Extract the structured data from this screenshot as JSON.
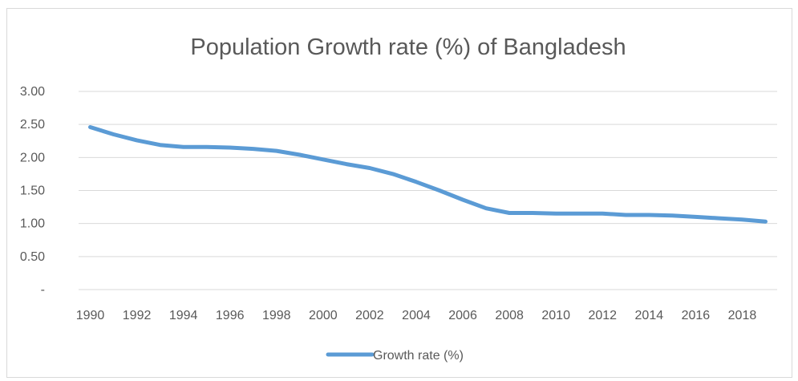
{
  "chart_data": {
    "type": "line",
    "title": "Population Growth rate (%) of Bangladesh",
    "xlabel": "",
    "ylabel": "",
    "ylim": [
      0,
      3
    ],
    "y_ticks": [
      {
        "value": 3.0,
        "label": "3.00"
      },
      {
        "value": 2.5,
        "label": "2.50"
      },
      {
        "value": 2.0,
        "label": "2.00"
      },
      {
        "value": 1.5,
        "label": "1.50"
      },
      {
        "value": 1.0,
        "label": "1.00"
      },
      {
        "value": 0.5,
        "label": "0.50"
      },
      {
        "value": 0.0,
        "label": "-"
      }
    ],
    "x_tick_labels": [
      "1990",
      "1992",
      "1994",
      "1996",
      "1998",
      "2000",
      "2002",
      "2004",
      "2006",
      "2008",
      "2010",
      "2012",
      "2014",
      "2016",
      "2018"
    ],
    "grid": true,
    "legend_position": "bottom",
    "series": [
      {
        "name": "Growth rate (%)",
        "color": "#5b9bd5",
        "x": [
          1990,
          1991,
          1992,
          1993,
          1994,
          1995,
          1996,
          1997,
          1998,
          1999,
          2000,
          2001,
          2002,
          2003,
          2004,
          2005,
          2006,
          2007,
          2008,
          2009,
          2010,
          2011,
          2012,
          2013,
          2014,
          2015,
          2016,
          2017,
          2018,
          2019
        ],
        "y": [
          2.46,
          2.35,
          2.26,
          2.19,
          2.16,
          2.16,
          2.15,
          2.13,
          2.1,
          2.04,
          1.97,
          1.9,
          1.84,
          1.75,
          1.63,
          1.5,
          1.36,
          1.23,
          1.16,
          1.16,
          1.15,
          1.15,
          1.15,
          1.13,
          1.13,
          1.12,
          1.1,
          1.08,
          1.06,
          1.03
        ]
      }
    ]
  }
}
